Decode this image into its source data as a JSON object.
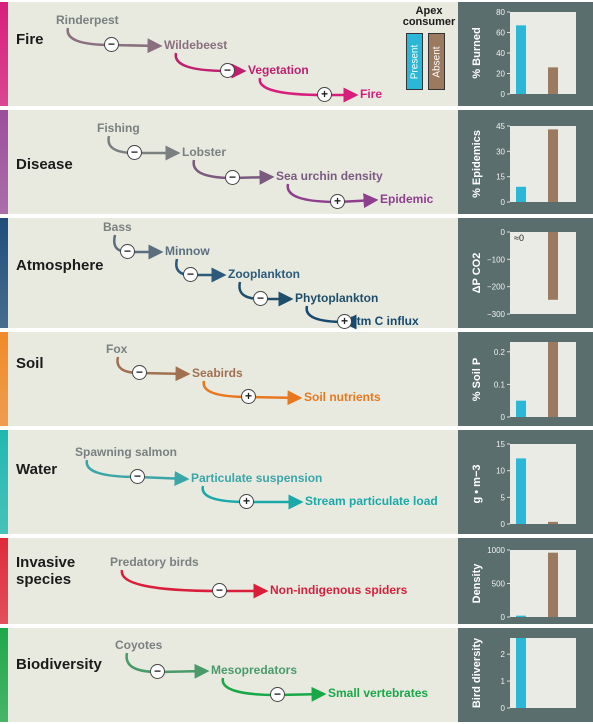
{
  "legend": {
    "title": "Apex consumer",
    "present": "Present",
    "absent": "Absent",
    "present_color": "#2bb8d8",
    "absent_color": "#9b7a60"
  },
  "panels": [
    {
      "title": "Fire",
      "strip_color": "#d81e7c",
      "nodes": [
        {
          "text": "Rinderpest",
          "color": "#7a8080"
        },
        {
          "text": "Wildebeest",
          "color": "#8a6f7e"
        },
        {
          "text": "Vegetation",
          "color": "#c01e6e"
        },
        {
          "text": "Fire",
          "color": "#d81e7c"
        }
      ],
      "signs": [
        "−",
        "−",
        "+"
      ],
      "chart_data": {
        "type": "bar",
        "ylabel": "% Burned",
        "categories": [
          "Present",
          "Absent"
        ],
        "values": [
          67,
          26
        ],
        "ylim": [
          0,
          80
        ],
        "ticks": [
          "0",
          "20",
          "40",
          "60",
          "80"
        ]
      }
    },
    {
      "title": "Disease",
      "strip_color": "#9b4f9b",
      "nodes": [
        {
          "text": "Fishing",
          "color": "#7a8080"
        },
        {
          "text": "Lobster",
          "color": "#7a8080"
        },
        {
          "text": "Sea urchin density",
          "color": "#7b5a80"
        },
        {
          "text": "Epidemic",
          "color": "#8e3f8e"
        }
      ],
      "signs": [
        "−",
        "−",
        "+"
      ],
      "chart_data": {
        "type": "bar",
        "ylabel": "% Epidemics",
        "categories": [
          "Present",
          "Absent"
        ],
        "values": [
          9,
          43
        ],
        "ylim": [
          0,
          45
        ],
        "ticks": [
          "0",
          "15",
          "30",
          "45"
        ]
      }
    },
    {
      "title": "Atmosphere",
      "strip_color": "#1f4e79",
      "nodes": [
        {
          "text": "Bass",
          "color": "#7a8080"
        },
        {
          "text": "Minnow",
          "color": "#5a6e7e"
        },
        {
          "text": "Zooplankton",
          "color": "#2c5a7a"
        },
        {
          "text": "Phytoplankton",
          "color": "#1f4e6a"
        },
        {
          "text": "Atm C influx",
          "color": "#174a6e"
        }
      ],
      "signs": [
        "−",
        "−",
        "−",
        "+"
      ],
      "chart_data": {
        "type": "bar",
        "ylabel": "ΔP CO2",
        "categories": [
          "Present",
          "Absent"
        ],
        "values": [
          0,
          -248
        ],
        "ylim": [
          -300,
          0
        ],
        "ticks": [
          "0",
          "−100",
          "−200",
          "−300"
        ],
        "annotation": "≈0"
      }
    },
    {
      "title": "Soil",
      "strip_color": "#f08a2a",
      "nodes": [
        {
          "text": "Fox",
          "color": "#7a8080"
        },
        {
          "text": "Seabirds",
          "color": "#a07050"
        },
        {
          "text": "Soil nutrients",
          "color": "#e87820"
        }
      ],
      "signs": [
        "−",
        "+"
      ],
      "chart_data": {
        "type": "bar",
        "ylabel": "% Soil P",
        "categories": [
          "Present",
          "Absent"
        ],
        "values": [
          0.05,
          0.23
        ],
        "ylim": [
          0,
          0.23
        ],
        "ticks": [
          "0",
          "0.1",
          "0.2"
        ]
      }
    },
    {
      "title": "Water",
      "strip_color": "#1fb8b0",
      "nodes": [
        {
          "text": "Spawning salmon",
          "color": "#7a8080"
        },
        {
          "text": "Particulate suspension",
          "color": "#3aa6a8"
        },
        {
          "text": "Stream particulate load",
          "color": "#1aa8a8"
        }
      ],
      "signs": [
        "−",
        "+"
      ],
      "chart_data": {
        "type": "bar",
        "ylabel": "g • m−3",
        "categories": [
          "Present",
          "Absent"
        ],
        "values": [
          12.3,
          0.4
        ],
        "ylim": [
          0,
          15
        ],
        "ticks": [
          "0",
          "5",
          "10",
          "15"
        ]
      }
    },
    {
      "title": "Invasive\nspecies",
      "strip_color": "#e02a3a",
      "nodes": [
        {
          "text": "Predatory birds",
          "color": "#7a8080"
        },
        {
          "text": "Non-indigenous spiders",
          "color": "#d81e3a"
        }
      ],
      "signs": [
        "−"
      ],
      "chart_data": {
        "type": "bar",
        "ylabel": "Density",
        "categories": [
          "Present",
          "Absent"
        ],
        "values": [
          20,
          960
        ],
        "ylim": [
          0,
          1000
        ],
        "ticks": [
          "0",
          "500",
          "1000"
        ]
      }
    },
    {
      "title": "Biodiversity",
      "strip_color": "#1fa84a",
      "nodes": [
        {
          "text": "Coyotes",
          "color": "#7a8080"
        },
        {
          "text": "Mesopredators",
          "color": "#4a9a6a"
        },
        {
          "text": "Small vertebrates",
          "color": "#18a848"
        }
      ],
      "signs": [
        "−",
        "−"
      ],
      "chart_data": {
        "type": "bar",
        "ylabel": "Bird diversity",
        "categories": [
          "Present",
          "Absent"
        ],
        "values": [
          2.6,
          0
        ],
        "ylim": [
          0,
          2.6
        ],
        "ticks": [
          "0",
          "1",
          "2"
        ]
      }
    }
  ]
}
